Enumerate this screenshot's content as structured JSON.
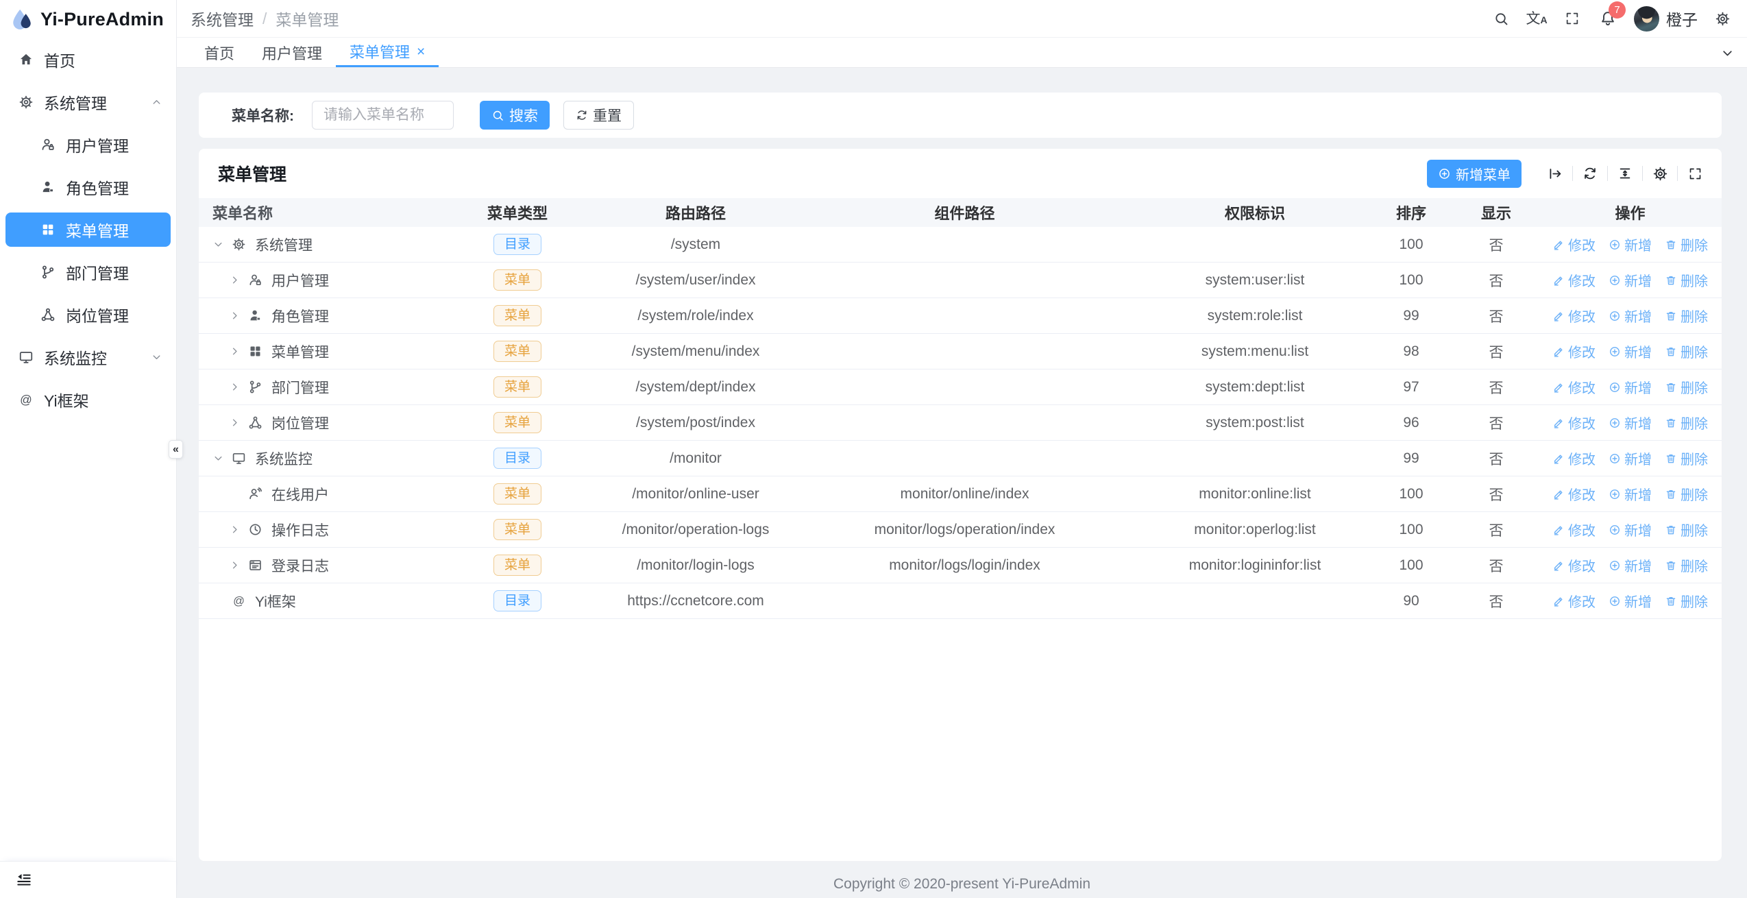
{
  "app": {
    "logo_title": "Yi-PureAdmin"
  },
  "header": {
    "breadcrumb": [
      "系统管理",
      "菜单管理"
    ],
    "breadcrumb_separator": "/",
    "notification_count": "7",
    "user_name": "橙子",
    "translate_glyph": "文A"
  },
  "tabs": [
    {
      "key": "home",
      "label": "首页",
      "active": false,
      "closable": false
    },
    {
      "key": "user-mgmt",
      "label": "用户管理",
      "active": false,
      "closable": false
    },
    {
      "key": "menu-mgmt",
      "label": "菜单管理",
      "active": true,
      "closable": true
    }
  ],
  "tab_close_glyph": "×",
  "sidebar": {
    "collapse_fab_glyph": "«",
    "items": [
      {
        "key": "home",
        "label": "首页",
        "icon": "home-icon",
        "level": 0
      },
      {
        "key": "system-mgmt",
        "label": "系统管理",
        "icon": "gear-icon",
        "level": 0,
        "chevron": "up"
      },
      {
        "key": "user-mgmt",
        "label": "用户管理",
        "icon": "user-icon",
        "level": 1
      },
      {
        "key": "role-mgmt",
        "label": "角色管理",
        "icon": "role-icon",
        "level": 1
      },
      {
        "key": "menu-mgmt",
        "label": "菜单管理",
        "icon": "menu-grid-icon",
        "level": 1,
        "active": true
      },
      {
        "key": "dept-mgmt",
        "label": "部门管理",
        "icon": "dept-icon",
        "level": 1
      },
      {
        "key": "post-mgmt",
        "label": "岗位管理",
        "icon": "post-icon",
        "level": 1
      },
      {
        "key": "sys-monitor",
        "label": "系统监控",
        "icon": "monitor-icon",
        "level": 0,
        "chevron": "down"
      },
      {
        "key": "yi-framework",
        "label": "Yi框架",
        "icon": "at-icon",
        "level": 0
      }
    ]
  },
  "search_form": {
    "label": "菜单名称:",
    "placeholder": "请输入菜单名称",
    "search_label": "搜索",
    "reset_label": "重置"
  },
  "card": {
    "title": "菜单管理",
    "add_button_label": "新增菜单"
  },
  "table": {
    "columns": [
      "菜单名称",
      "菜单类型",
      "路由路径",
      "组件路径",
      "权限标识",
      "排序",
      "显示",
      "操作"
    ],
    "tag_labels": {
      "dir": "目录",
      "menu": "菜单"
    },
    "op_labels": {
      "edit": "修改",
      "add": "新增",
      "del": "删除"
    },
    "rows": [
      {
        "name": "系统管理",
        "icon": "gear-icon",
        "level": 0,
        "expand": "down",
        "type": "dir",
        "route": "/system",
        "component": "",
        "perm": "",
        "sort": "100",
        "show": "否"
      },
      {
        "name": "用户管理",
        "icon": "user-icon",
        "level": 1,
        "expand": "right",
        "type": "menu",
        "route": "/system/user/index",
        "component": "",
        "perm": "system:user:list",
        "sort": "100",
        "show": "否"
      },
      {
        "name": "角色管理",
        "icon": "role-icon",
        "level": 1,
        "expand": "right",
        "type": "menu",
        "route": "/system/role/index",
        "component": "",
        "perm": "system:role:list",
        "sort": "99",
        "show": "否"
      },
      {
        "name": "菜单管理",
        "icon": "menu-grid-icon",
        "level": 1,
        "expand": "right",
        "type": "menu",
        "route": "/system/menu/index",
        "component": "",
        "perm": "system:menu:list",
        "sort": "98",
        "show": "否"
      },
      {
        "name": "部门管理",
        "icon": "dept-icon",
        "level": 1,
        "expand": "right",
        "type": "menu",
        "route": "/system/dept/index",
        "component": "",
        "perm": "system:dept:list",
        "sort": "97",
        "show": "否"
      },
      {
        "name": "岗位管理",
        "icon": "post-icon",
        "level": 1,
        "expand": "right",
        "type": "menu",
        "route": "/system/post/index",
        "component": "",
        "perm": "system:post:list",
        "sort": "96",
        "show": "否"
      },
      {
        "name": "系统监控",
        "icon": "monitor-icon",
        "level": 0,
        "expand": "down",
        "type": "dir",
        "route": "/monitor",
        "component": "",
        "perm": "",
        "sort": "99",
        "show": "否"
      },
      {
        "name": "在线用户",
        "icon": "online-user-icon",
        "level": 1,
        "expand": "none",
        "type": "menu",
        "route": "/monitor/online-user",
        "component": "monitor/online/index",
        "perm": "monitor:online:list",
        "sort": "100",
        "show": "否"
      },
      {
        "name": "操作日志",
        "icon": "history-icon",
        "level": 1,
        "expand": "right",
        "type": "menu",
        "route": "/monitor/operation-logs",
        "component": "monitor/logs/operation/index",
        "perm": "monitor:operlog:list",
        "sort": "100",
        "show": "否"
      },
      {
        "name": "登录日志",
        "icon": "login-log-icon",
        "level": 1,
        "expand": "right",
        "type": "menu",
        "route": "/monitor/login-logs",
        "component": "monitor/logs/login/index",
        "perm": "monitor:logininfor:list",
        "sort": "100",
        "show": "否"
      },
      {
        "name": "Yi框架",
        "icon": "at-icon",
        "level": 0,
        "expand": "none",
        "type": "dir",
        "route": "https://ccnetcore.com",
        "component": "",
        "perm": "",
        "sort": "90",
        "show": "否"
      }
    ]
  },
  "footer": {
    "copyright": "Copyright © 2020-present Yi-PureAdmin"
  },
  "colors": {
    "primary": "#409eff",
    "tag_dir_text": "#409eff",
    "tag_menu_text": "#e6a23c",
    "badge_red": "#f56c6c",
    "op_link_blue": "#6cb1f8"
  }
}
